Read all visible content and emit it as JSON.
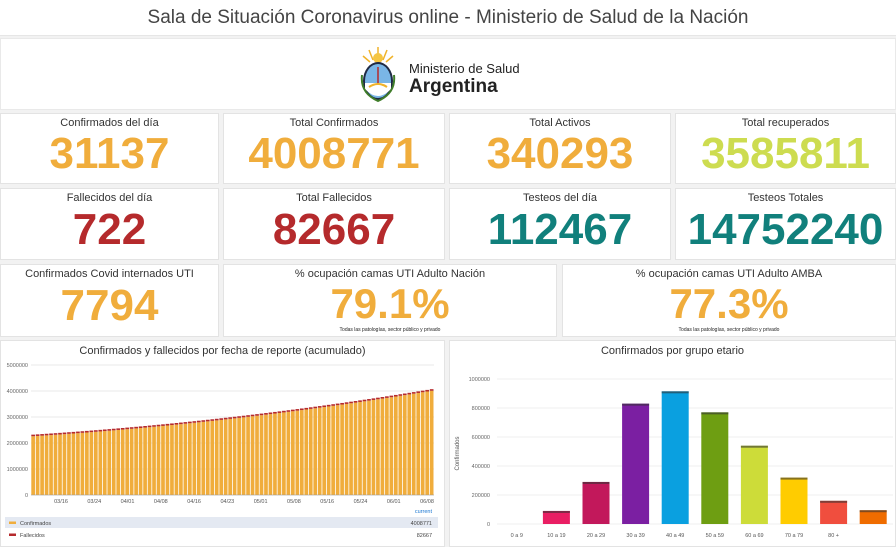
{
  "header": {
    "title": "Sala de Situación Coronavirus online - Ministerio de Salud de la Nación"
  },
  "logo": {
    "line1": "Ministerio de Salud",
    "line2": "Argentina"
  },
  "kpis": {
    "confirmados_dia": {
      "label": "Confirmados del día",
      "value": "31137"
    },
    "total_confirmados": {
      "label": "Total Confirmados",
      "value": "4008771"
    },
    "total_activos": {
      "label": "Total Activos",
      "value": "340293"
    },
    "total_recuperados": {
      "label": "Total recuperados",
      "value": "3585811"
    },
    "fallecidos_dia": {
      "label": "Fallecidos del día",
      "value": "722"
    },
    "total_fallecidos": {
      "label": "Total Fallecidos",
      "value": "82667"
    },
    "testeos_dia": {
      "label": "Testeos del día",
      "value": "112467"
    },
    "testeos_totales": {
      "label": "Testeos Totales",
      "value": "14752240"
    },
    "internados_uti": {
      "label": "Confirmados Covid internados UTI",
      "value": "7794"
    },
    "ocupacion_nacion": {
      "label": "% ocupación camas UTI Adulto Nación",
      "value": "79.1%",
      "note": "Todas las patologías, sector público y privado"
    },
    "ocupacion_amba": {
      "label": "% ocupación camas UTI Adulto AMBA",
      "value": "77.3%",
      "note": "Todas las patologías, sector público y privado"
    }
  },
  "colors": {
    "orange": "#f0ad3c",
    "green": "#cddc50",
    "red": "#b52a2c",
    "teal": "#11807c"
  },
  "chart_data": [
    {
      "type": "bar",
      "title": "Confirmados y fallecidos por fecha de reporte (acumulado)",
      "x_ticks": [
        "03/16",
        "03/24",
        "04/01",
        "04/08",
        "04/16",
        "04/23",
        "05/01",
        "05/08",
        "05/16",
        "05/24",
        "06/01",
        "06/08"
      ],
      "y_ticks": [
        "0",
        "1000000",
        "2000000",
        "3000000",
        "4000000",
        "5000000"
      ],
      "ylim": [
        0,
        5000000
      ],
      "series": [
        {
          "name": "Confirmados",
          "color": "#f0ad3c",
          "start": 2260000,
          "end": 4008771,
          "current": "4008771"
        },
        {
          "name": "Fallecidos",
          "color": "#b52a2c",
          "current": "82667"
        }
      ],
      "legend_header": "current",
      "legend_position": "bottom"
    },
    {
      "type": "bar",
      "title": "Confirmados por grupo etario",
      "ylabel": "Confirmados",
      "categories": [
        "0 a 9",
        "10 a 19",
        "20 a 29",
        "30 a 39",
        "40 a 49",
        "50 a 59",
        "60 a 69",
        "70 a 79",
        "80 +",
        ""
      ],
      "values": [
        0,
        90000,
        290000,
        830000,
        915000,
        770000,
        540000,
        320000,
        160000,
        95000
      ],
      "colors": [
        "#e91e63",
        "#e91e63",
        "#c2185b",
        "#7b1fa2",
        "#0aa0e0",
        "#6e9e12",
        "#cddc39",
        "#ffcc00",
        "#f04e3e",
        "#ef6c00"
      ],
      "y_ticks": [
        "0",
        "200000",
        "400000",
        "600000",
        "800000",
        "1000000"
      ],
      "ylim": [
        0,
        1000000
      ]
    }
  ]
}
